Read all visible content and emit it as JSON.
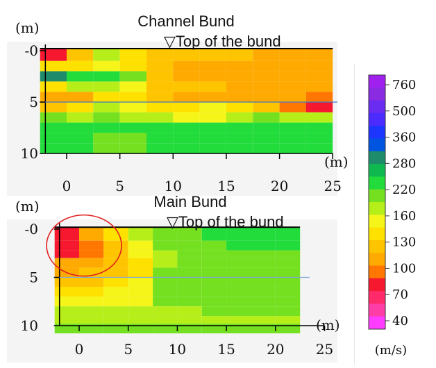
{
  "chart_data": [
    {
      "type": "heatmap",
      "title": "Channel Bund",
      "annotation": "▽Top of the bund",
      "ylabel": "(m)",
      "xlabel": "(m)",
      "x_ticks": [
        "0",
        "5",
        "10",
        "15",
        "20",
        "25"
      ],
      "y_ticks": [
        "-0",
        "5",
        "10"
      ],
      "xlim": [
        -2,
        25
      ],
      "ylim": [
        -0.2,
        10
      ],
      "reference_line_depth": 5,
      "cell_width_m": 2.5,
      "row_bounds_depth": [
        -0.2,
        1.0,
        2.0,
        3.0,
        4.0,
        5.0,
        6.0,
        7.0,
        8.0,
        9.0,
        10.0
      ],
      "values": [
        [
          70,
          110,
          150,
          120,
          110,
          105,
          105,
          105,
          100,
          100,
          100
        ],
        [
          130,
          120,
          140,
          130,
          110,
          100,
          100,
          100,
          100,
          100,
          100
        ],
        [
          280,
          220,
          210,
          180,
          110,
          100,
          100,
          100,
          100,
          100,
          100
        ],
        [
          120,
          150,
          160,
          140,
          110,
          105,
          105,
          100,
          100,
          100,
          100
        ],
        [
          100,
          100,
          120,
          120,
          110,
          100,
          100,
          100,
          100,
          90,
          80
        ],
        [
          115,
          130,
          160,
          140,
          130,
          125,
          140,
          125,
          110,
          80,
          70
        ],
        [
          170,
          160,
          165,
          160,
          150,
          140,
          140,
          150,
          170,
          160,
          155
        ],
        [
          210,
          200,
          200,
          200,
          205,
          210,
          200,
          200,
          200,
          200,
          200
        ],
        [
          210,
          200,
          190,
          190,
          200,
          210,
          200,
          200,
          200,
          200,
          200
        ],
        [
          210,
          200,
          190,
          190,
          200,
          210,
          205,
          210,
          210,
          210,
          210
        ]
      ]
    },
    {
      "type": "heatmap",
      "title": "Main Bund",
      "annotation": "▽Top of the bund",
      "ylabel": "(m)",
      "xlabel": "(m)",
      "x_ticks": [
        "0",
        "5",
        "10",
        "15",
        "20",
        "25"
      ],
      "y_ticks": [
        "-0",
        "5",
        "10"
      ],
      "xlim": [
        -2,
        25
      ],
      "ylim": [
        -0.2,
        10
      ],
      "reference_line_depth": 5,
      "cell_width_m": 2.5,
      "row_bounds_depth": [
        -0.2,
        1.2,
        2.2,
        3.0,
        4.0,
        5.0,
        6.0,
        7.0,
        8.0,
        9.0,
        9.8,
        10.8
      ],
      "values": [
        [
          70,
          90,
          120,
          150,
          180,
          190,
          200,
          200,
          210,
          215
        ],
        [
          70,
          85,
          110,
          140,
          170,
          180,
          190,
          195,
          205,
          210
        ],
        [
          60,
          80,
          105,
          135,
          160,
          175,
          180,
          180,
          180,
          180
        ],
        [
          90,
          100,
          110,
          130,
          160,
          175,
          180,
          180,
          180,
          180
        ],
        [
          100,
          105,
          115,
          130,
          165,
          175,
          180,
          180,
          180,
          180
        ],
        [
          110,
          115,
          125,
          135,
          165,
          170,
          175,
          175,
          175,
          175
        ],
        [
          125,
          130,
          140,
          135,
          165,
          170,
          170,
          170,
          170,
          170
        ],
        [
          135,
          140,
          140,
          135,
          165,
          165,
          170,
          170,
          170,
          170
        ],
        [
          150,
          150,
          150,
          150,
          160,
          160,
          165,
          165,
          165,
          165
        ],
        [
          160,
          160,
          160,
          160,
          160,
          160,
          160,
          160,
          160,
          160
        ],
        [
          180,
          180,
          180,
          180,
          180,
          180,
          180,
          180,
          180,
          180
        ]
      ],
      "annotation_shape": "red-ellipse"
    }
  ],
  "colorbar": {
    "unit_label": "(m/s)",
    "tick_labels": [
      "760",
      "500",
      "360",
      "280",
      "220",
      "160",
      "130",
      "100",
      "70",
      "40"
    ],
    "stops": [
      {
        "value": 760,
        "color": "#A020F0"
      },
      {
        "value": 620,
        "color": "#8A2BE2"
      },
      {
        "value": 500,
        "color": "#6A2CF0"
      },
      {
        "value": 430,
        "color": "#4B2BFF"
      },
      {
        "value": 360,
        "color": "#1C36FF"
      },
      {
        "value": 320,
        "color": "#0055E0"
      },
      {
        "value": 280,
        "color": "#1E8C6A"
      },
      {
        "value": 250,
        "color": "#10B850"
      },
      {
        "value": 220,
        "color": "#22DC3C"
      },
      {
        "value": 190,
        "color": "#74E020"
      },
      {
        "value": 160,
        "color": "#B5EE18"
      },
      {
        "value": 145,
        "color": "#F5F519"
      },
      {
        "value": 130,
        "color": "#FFE100"
      },
      {
        "value": 115,
        "color": "#FFC400"
      },
      {
        "value": 100,
        "color": "#FFAA00"
      },
      {
        "value": 85,
        "color": "#FF7700"
      },
      {
        "value": 70,
        "color": "#F5182E"
      },
      {
        "value": 55,
        "color": "#FF2A6A"
      },
      {
        "value": 40,
        "color": "#FF3DA6"
      },
      {
        "value": 25,
        "color": "#FF3CFF"
      }
    ]
  }
}
